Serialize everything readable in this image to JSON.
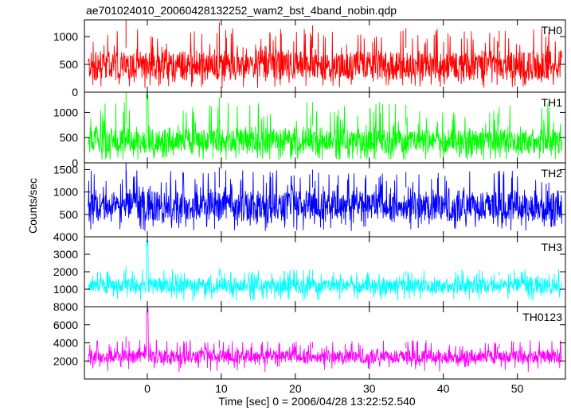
{
  "chart_data": {
    "type": "line",
    "title": "ae701024010_20060428132252_wam2_bst_4band_nobin.qdp",
    "xlabel": "Time [sec] 0 = 2006/04/28 13:22:52.540",
    "ylabel": "Counts/sec",
    "xlim": [
      -8.5,
      56.5
    ],
    "data_x_range": [
      -8,
      56
    ],
    "x_ticks": [
      0,
      10,
      20,
      30,
      40,
      50
    ],
    "panels": [
      {
        "name": "TH0",
        "color": "#ff0000",
        "ylim": [
          0,
          1300
        ],
        "y_ticks": [
          0,
          500,
          1000
        ],
        "noise_band": [
          150,
          800
        ],
        "spike_peaks": [
          1300,
          1250,
          1200,
          1150,
          1100
        ],
        "burst": null
      },
      {
        "name": "TH1",
        "color": "#00ff00",
        "ylim": [
          0,
          1400
        ],
        "y_ticks": [
          0,
          500,
          1000
        ],
        "noise_band": [
          120,
          750
        ],
        "spike_peaks": [
          1400,
          1300,
          1200,
          1150,
          1100
        ],
        "burst": {
          "x": 0,
          "y": 1400
        }
      },
      {
        "name": "TH2",
        "color": "#0000ff",
        "ylim": [
          0,
          1650
        ],
        "y_ticks": [
          500,
          1000,
          1500
        ],
        "noise_band": [
          250,
          1100
        ],
        "spike_peaks": [
          1650,
          1550,
          1500,
          1450,
          1400
        ],
        "burst": null
      },
      {
        "name": "TH3",
        "color": "#00ffff",
        "ylim": [
          0,
          4000
        ],
        "y_ticks": [
          1000,
          2000,
          3000,
          4000
        ],
        "noise_band": [
          650,
          1750
        ],
        "spike_peaks": [
          2300,
          2200,
          2100,
          2050,
          2000
        ],
        "burst": {
          "x": 0,
          "y": 4000
        }
      },
      {
        "name": "TH0123",
        "color": "#ff00ff",
        "ylim": [
          0,
          8000
        ],
        "y_ticks": [
          2000,
          4000,
          6000,
          8000
        ],
        "noise_band": [
          1500,
          3400
        ],
        "spike_peaks": [
          4700,
          4300,
          4100,
          4000,
          3900
        ],
        "burst": {
          "x": 0,
          "y": 8000
        }
      }
    ]
  }
}
